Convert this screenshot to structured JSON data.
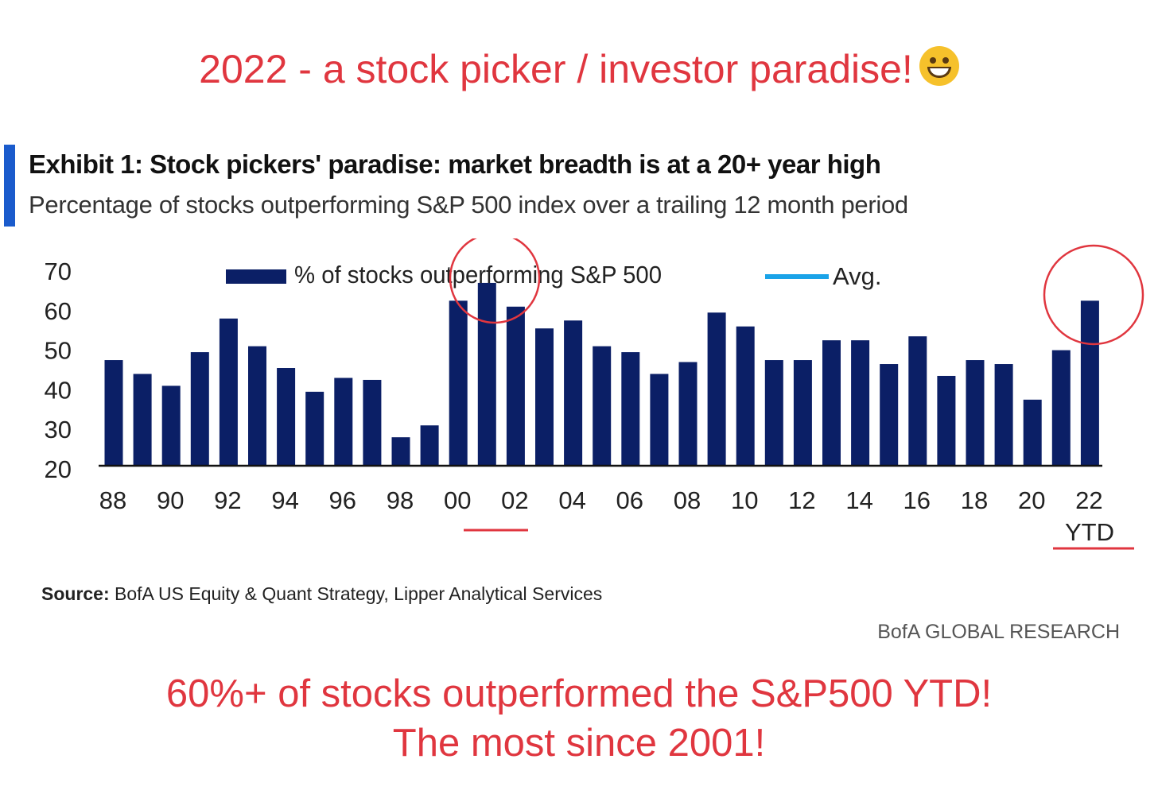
{
  "headline_top": "2022 - a stock picker / investor paradise!",
  "emoji": "grinning-face-with-smiling-eyes",
  "exhibit": {
    "title": "Exhibit 1: Stock pickers' paradise: market breadth is at a 20+ year high",
    "subtitle": "Percentage of stocks outperforming S&P 500 index over a trailing 12 month period"
  },
  "chart_data": {
    "type": "bar",
    "title": "",
    "xlabel": "",
    "ylabel": "",
    "ylim": [
      20,
      70
    ],
    "yticks": [
      20,
      30,
      40,
      50,
      60,
      70
    ],
    "grid": false,
    "legend_position": "top",
    "categories": [
      "1988",
      "1989",
      "1990",
      "1991",
      "1992",
      "1993",
      "1994",
      "1995",
      "1996",
      "1997",
      "1998",
      "1999",
      "2000",
      "2001",
      "2002",
      "2003",
      "2004",
      "2005",
      "2006",
      "2007",
      "2008",
      "2009",
      "2010",
      "2011",
      "2012",
      "2013",
      "2014",
      "2015",
      "2016",
      "2017",
      "2018",
      "2019",
      "2020",
      "2021",
      "2022 YTD"
    ],
    "xtick_labels": [
      {
        "category": "1988",
        "label": "88"
      },
      {
        "category": "1990",
        "label": "90"
      },
      {
        "category": "1992",
        "label": "92"
      },
      {
        "category": "1994",
        "label": "94"
      },
      {
        "category": "1996",
        "label": "96"
      },
      {
        "category": "1998",
        "label": "98"
      },
      {
        "category": "2000",
        "label": "00"
      },
      {
        "category": "2002",
        "label": "02"
      },
      {
        "category": "2004",
        "label": "04"
      },
      {
        "category": "2006",
        "label": "06"
      },
      {
        "category": "2008",
        "label": "08"
      },
      {
        "category": "2010",
        "label": "10"
      },
      {
        "category": "2012",
        "label": "12"
      },
      {
        "category": "2014",
        "label": "14"
      },
      {
        "category": "2016",
        "label": "16"
      },
      {
        "category": "2018",
        "label": "18"
      },
      {
        "category": "2020",
        "label": "20"
      },
      {
        "category": "2022 YTD",
        "label": "22"
      }
    ],
    "ytd_label": "YTD",
    "series": [
      {
        "name": "% of stocks outperforming  S&P 500",
        "color": "#0b1f66",
        "values": [
          47.5,
          44,
          41,
          49.5,
          58,
          51,
          45.5,
          39.5,
          43,
          42.5,
          28,
          31,
          62.5,
          67,
          61,
          55.5,
          57.5,
          51,
          49.5,
          44,
          47,
          59.5,
          56,
          47.5,
          47.5,
          52.5,
          52.5,
          46.5,
          53.5,
          43.5,
          47.5,
          46.5,
          37.5,
          50,
          62.5
        ]
      }
    ],
    "legend": [
      {
        "label": "% of stocks outperforming  S&P 500",
        "symbol": "bar",
        "color": "#0b1f66"
      },
      {
        "label": "Avg.",
        "symbol": "line",
        "color": "#1aa3e8"
      }
    ],
    "annotations": [
      {
        "type": "circle",
        "target": "2001",
        "color": "#e0363f"
      },
      {
        "type": "circle",
        "target": "2022 YTD",
        "color": "#e0363f"
      },
      {
        "type": "underline",
        "target": "00-02 tick labels",
        "color": "#e0363f"
      },
      {
        "type": "underline",
        "target": "YTD label",
        "color": "#e0363f"
      }
    ]
  },
  "source": {
    "label": "Source:",
    "text": " BofA US Equity & Quant Strategy, Lipper Analytical Services"
  },
  "brand": "BofA GLOBAL RESEARCH",
  "headline_bottom": {
    "line1": "60%+ of stocks outperformed the S&P500 YTD!",
    "line2": "The most since 2001!"
  },
  "colors": {
    "headline": "#e0363f",
    "bar": "#0b1f66",
    "avg_line": "#1aa3e8",
    "accent_bar": "#1a5bcc"
  }
}
